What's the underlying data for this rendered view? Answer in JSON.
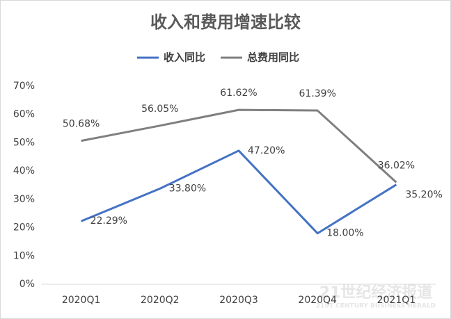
{
  "chart_data": {
    "type": "line",
    "title": "收入和费用增速比较",
    "categories": [
      "2020Q1",
      "2020Q2",
      "2020Q3",
      "2020Q4",
      "2021Q1"
    ],
    "series": [
      {
        "name": "收入同比",
        "color": "#4472c4",
        "values": [
          22.29,
          33.8,
          47.2,
          18.0,
          35.2
        ],
        "value_labels": [
          "22.29%",
          "33.80%",
          "47.20%",
          "18.00%",
          "35.20%"
        ]
      },
      {
        "name": "总费用同比",
        "color": "#7f7f7f",
        "values": [
          50.68,
          56.05,
          61.62,
          61.39,
          36.02
        ],
        "value_labels": [
          "50.68%",
          "56.05%",
          "61.62%",
          "61.39%",
          "36.02%"
        ]
      }
    ],
    "ylim": [
      0,
      70
    ],
    "yticks": [
      {
        "value": 0,
        "label": "0%"
      },
      {
        "value": 10,
        "label": "10%"
      },
      {
        "value": 20,
        "label": "20%"
      },
      {
        "value": 30,
        "label": "30%"
      },
      {
        "value": 40,
        "label": "40%"
      },
      {
        "value": 50,
        "label": "50%"
      },
      {
        "value": 60,
        "label": "60%"
      },
      {
        "value": 70,
        "label": "70%"
      }
    ],
    "grid": false,
    "legend": "top",
    "watermark": {
      "title": "21世纪经济报道",
      "subtitle": "21ST CENTURY BUSINESS HERALD"
    }
  }
}
